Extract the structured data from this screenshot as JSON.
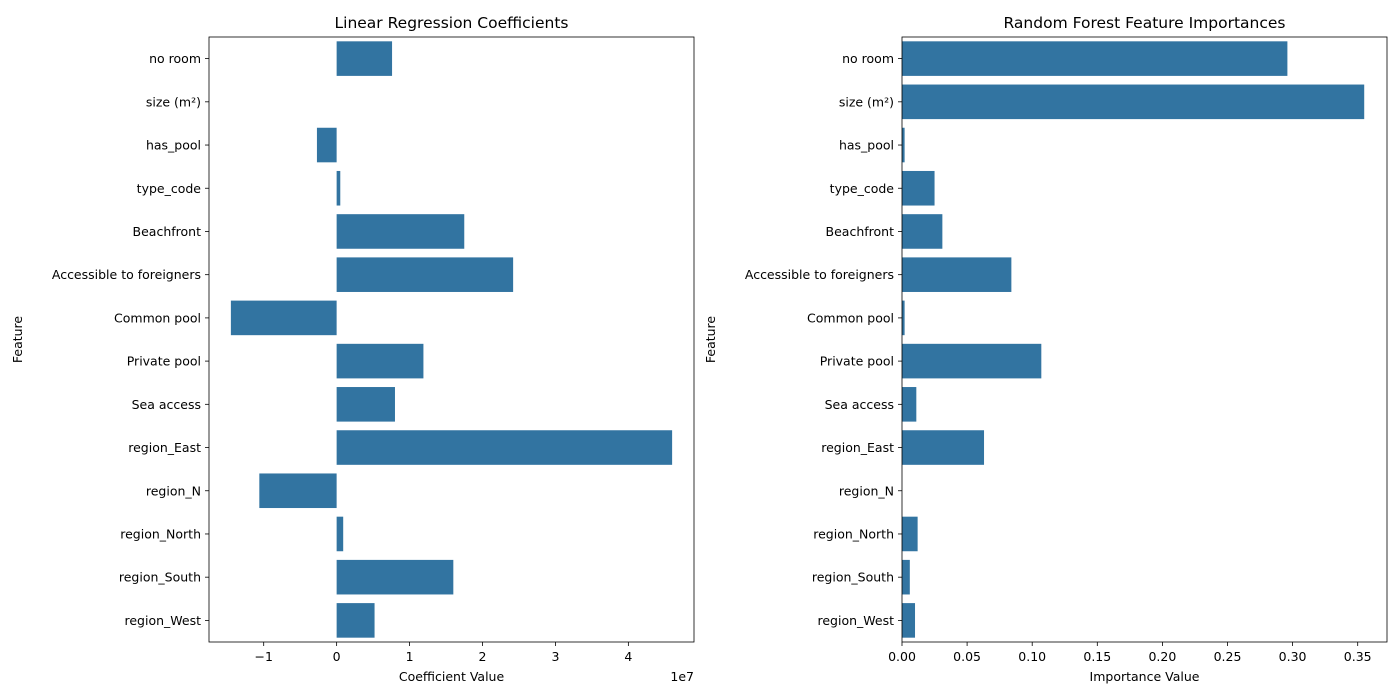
{
  "chart_data": [
    {
      "type": "bar",
      "orientation": "horizontal",
      "title": "Linear Regression Coefficients",
      "xlabel": "Coefficient Value",
      "ylabel": "Feature",
      "x_offset_label": "1e7",
      "xlim": [
        -1.75,
        4.9
      ],
      "x_ticks": [
        -1,
        0,
        1,
        2,
        3,
        4
      ],
      "x_tick_labels": [
        "−1",
        "0",
        "1",
        "2",
        "3",
        "4"
      ],
      "color": "#3274a1",
      "categories": [
        "no room",
        "size (m²)",
        "has_pool",
        "type_code",
        "Beachfront",
        "Accessible to foreigners",
        "Common pool",
        "Private pool",
        "Sea access",
        "region_East",
        "region_N",
        "region_North",
        "region_South",
        "region_West"
      ],
      "values": [
        0.76,
        0.0,
        -0.27,
        0.05,
        1.75,
        2.42,
        -1.45,
        1.19,
        0.8,
        4.6,
        -1.06,
        0.09,
        1.6,
        0.52
      ]
    },
    {
      "type": "bar",
      "orientation": "horizontal",
      "title": "Random Forest Feature Importances",
      "xlabel": "Importance Value",
      "ylabel": "Feature",
      "x_offset_label": "",
      "xlim": [
        0,
        0.3725
      ],
      "x_ticks": [
        0,
        0.05,
        0.1,
        0.15,
        0.2,
        0.25,
        0.3,
        0.35
      ],
      "x_tick_labels": [
        "0.00",
        "0.05",
        "0.10",
        "0.15",
        "0.20",
        "0.25",
        "0.30",
        "0.35"
      ],
      "color": "#3274a1",
      "categories": [
        "no room",
        "size (m²)",
        "has_pool",
        "type_code",
        "Beachfront",
        "Accessible to foreigners",
        "Common pool",
        "Private pool",
        "Sea access",
        "region_East",
        "region_N",
        "region_North",
        "region_South",
        "region_West"
      ],
      "values": [
        0.296,
        0.355,
        0.002,
        0.025,
        0.031,
        0.084,
        0.002,
        0.107,
        0.011,
        0.063,
        0.0,
        0.012,
        0.006,
        0.01
      ]
    }
  ]
}
